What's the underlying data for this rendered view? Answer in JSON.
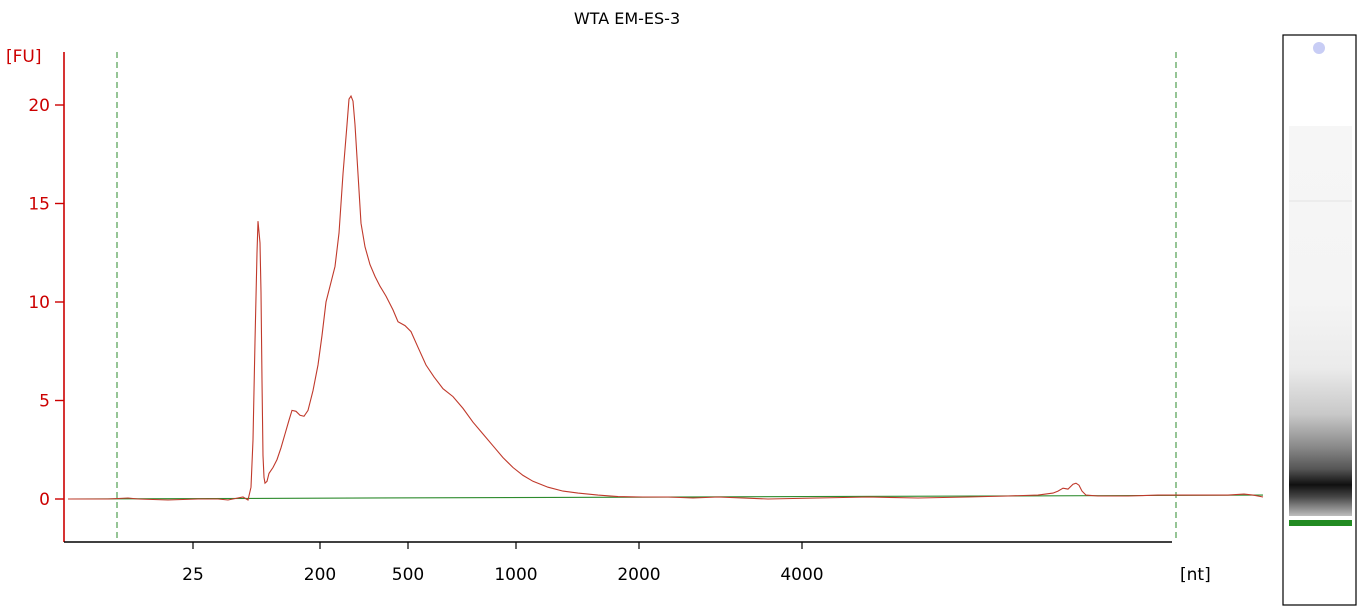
{
  "chart_data": {
    "type": "line",
    "title": "WTA EM-ES-3",
    "ylabel": "[FU]",
    "xlabel": "[nt]",
    "ylim": [
      -2,
      22
    ],
    "yticks": [
      0,
      5,
      10,
      15,
      20
    ],
    "xtick_labels": [
      "25",
      "200",
      "500",
      "1000",
      "2000",
      "4000"
    ],
    "grid": false,
    "legend": "none",
    "series": [
      {
        "color": "#c0392b",
        "points": [
          [
            0,
            0.0
          ],
          [
            40,
            0.0
          ],
          [
            60,
            0.05
          ],
          [
            70,
            0.0
          ],
          [
            100,
            -0.05
          ],
          [
            130,
            0.0
          ],
          [
            150,
            0.0
          ],
          [
            160,
            -0.05
          ],
          [
            175,
            0.1
          ],
          [
            180,
            -0.05
          ],
          [
            183,
            0.6
          ],
          [
            185,
            3.0
          ],
          [
            187,
            8.0
          ],
          [
            189,
            12.5
          ],
          [
            190,
            14.1
          ],
          [
            192,
            13.0
          ],
          [
            193,
            10.5
          ],
          [
            194,
            6.0
          ],
          [
            195,
            2.2
          ],
          [
            196,
            1.1
          ],
          [
            197,
            0.8
          ],
          [
            199,
            0.9
          ],
          [
            201,
            1.3
          ],
          [
            205,
            1.6
          ],
          [
            209,
            2.0
          ],
          [
            213,
            2.6
          ],
          [
            217,
            3.3
          ],
          [
            221,
            4.0
          ],
          [
            224,
            4.5
          ],
          [
            228,
            4.45
          ],
          [
            232,
            4.25
          ],
          [
            236,
            4.2
          ],
          [
            240,
            4.5
          ],
          [
            245,
            5.5
          ],
          [
            250,
            6.8
          ],
          [
            254,
            8.3
          ],
          [
            258,
            10.0
          ],
          [
            262,
            10.8
          ],
          [
            267,
            11.8
          ],
          [
            271,
            13.5
          ],
          [
            275,
            16.5
          ],
          [
            279,
            19.0
          ],
          [
            281,
            20.3
          ],
          [
            283,
            20.45
          ],
          [
            285,
            20.2
          ],
          [
            287,
            19.0
          ],
          [
            290,
            16.5
          ],
          [
            293,
            14.0
          ],
          [
            297,
            12.8
          ],
          [
            302,
            11.9
          ],
          [
            307,
            11.3
          ],
          [
            312,
            10.8
          ],
          [
            318,
            10.3
          ],
          [
            325,
            9.6
          ],
          [
            330,
            9.0
          ],
          [
            337,
            8.8
          ],
          [
            343,
            8.5
          ],
          [
            350,
            7.7
          ],
          [
            358,
            6.8
          ],
          [
            366,
            6.2
          ],
          [
            375,
            5.6
          ],
          [
            385,
            5.2
          ],
          [
            395,
            4.6
          ],
          [
            405,
            3.9
          ],
          [
            415,
            3.3
          ],
          [
            425,
            2.7
          ],
          [
            435,
            2.1
          ],
          [
            445,
            1.6
          ],
          [
            455,
            1.2
          ],
          [
            465,
            0.9
          ],
          [
            480,
            0.6
          ],
          [
            495,
            0.4
          ],
          [
            510,
            0.3
          ],
          [
            530,
            0.2
          ],
          [
            550,
            0.12
          ],
          [
            575,
            0.1
          ],
          [
            600,
            0.1
          ],
          [
            625,
            0.05
          ],
          [
            650,
            0.1
          ],
          [
            700,
            0.0
          ],
          [
            750,
            0.05
          ],
          [
            800,
            0.1
          ],
          [
            850,
            0.05
          ],
          [
            900,
            0.1
          ],
          [
            940,
            0.15
          ],
          [
            970,
            0.2
          ],
          [
            985,
            0.3
          ],
          [
            990,
            0.4
          ],
          [
            995,
            0.55
          ],
          [
            1000,
            0.5
          ],
          [
            1005,
            0.75
          ],
          [
            1008,
            0.8
          ],
          [
            1011,
            0.7
          ],
          [
            1014,
            0.4
          ],
          [
            1018,
            0.2
          ],
          [
            1030,
            0.15
          ],
          [
            1060,
            0.15
          ],
          [
            1090,
            0.2
          ],
          [
            1120,
            0.2
          ],
          [
            1140,
            0.2
          ],
          [
            1160,
            0.2
          ],
          [
            1176,
            0.25
          ],
          [
            1185,
            0.2
          ],
          [
            1195,
            0.1
          ]
        ]
      },
      {
        "color": "#2e8b2e",
        "points": [
          [
            0,
            0.0
          ],
          [
            1195,
            0.2
          ]
        ]
      }
    ],
    "x_markers": [
      117,
      1176
    ],
    "gel_lane": {
      "marker_band_color": "#228b22"
    }
  }
}
